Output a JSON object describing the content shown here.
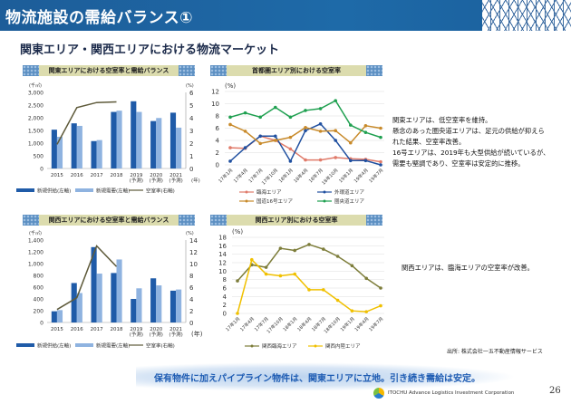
{
  "header": {
    "title": "物流施設の需給バランス①"
  },
  "subtitle": "関東エリア・関西エリアにおける物流マーケット",
  "notes": {
    "kanto": [
      "関東エリアは、低空室率を維持。",
      "懸念のあった圏央道エリアは、足元の供給が抑えら",
      "れた結果、空室率改善。",
      "16号エリアは、2019年も大型供給が続いているが、",
      "需要も堅調であり、空室率は安定的に推移。"
    ],
    "kansai": "関西エリアは、臨海エリアの空室率が改善。"
  },
  "source": "出所: 株式会社一五不動産情報サービス",
  "banner": "保有物件に加えパイプライン物件は、関東エリアに立地。引き続き需給は安定。",
  "footer": {
    "corporation": "ITOCHU Advance Logistics Investment Corporation",
    "page": "26"
  },
  "chart_data": [
    {
      "type": "bar+line",
      "title": "関東エリアにおける空室率と需給バランス",
      "categories": [
        "2015",
        "2016",
        "2017",
        "2018",
        "2019",
        "2020",
        "2021"
      ],
      "category_sub": [
        "",
        "",
        "",
        "",
        "(予測)",
        "(予測)",
        "(予測)"
      ],
      "x_unit": "(年)",
      "y_left_unit": "(千㎡)",
      "y_right_unit": "(%)",
      "ylim_left": [
        0,
        3000
      ],
      "ylim_left_step": 500,
      "ylim_right": [
        0,
        6
      ],
      "ylim_right_step": 1,
      "series": [
        {
          "name": "新規供給(左軸)",
          "kind": "bar",
          "axis": "left",
          "color": "#1f5ba8",
          "values": [
            1530,
            1780,
            1080,
            2230,
            2650,
            1870,
            2200
          ]
        },
        {
          "name": "新規需要(左軸)",
          "kind": "bar",
          "axis": "left",
          "color": "#8fb3e0",
          "values": [
            1250,
            1680,
            1120,
            2280,
            2230,
            1990,
            1610
          ]
        },
        {
          "name": "空室率(右軸)",
          "kind": "line",
          "axis": "right",
          "color": "#5e5a3a",
          "values": [
            1.9,
            4.8,
            5.2,
            5.25,
            null,
            null,
            null
          ]
        }
      ]
    },
    {
      "type": "line",
      "title": "首都圏エリア別における空室率",
      "y_unit": "(%)",
      "ylim": [
        0,
        12
      ],
      "ystep": 2,
      "categories": [
        "17年1月",
        "17年4月",
        "17年7月",
        "17年10月",
        "18年1月",
        "18年4月",
        "18年7月",
        "18年10月",
        "19年1月",
        "19年4月",
        "19年7月"
      ],
      "series": [
        {
          "name": "臨海エリア",
          "color": "#e07b6a",
          "values": [
            2.8,
            2.7,
            4.7,
            4.0,
            2.6,
            0.8,
            0.8,
            1.2,
            1.0,
            0.9,
            0.5
          ]
        },
        {
          "name": "外環道エリア",
          "color": "#2050a0",
          "values": [
            0.6,
            2.8,
            4.7,
            4.7,
            0.6,
            5.6,
            6.7,
            4.0,
            0.7,
            0.7,
            0
          ]
        },
        {
          "name": "国道16号エリア",
          "color": "#c88a2a",
          "values": [
            6.6,
            5.5,
            3.5,
            4.0,
            4.5,
            6.1,
            5.5,
            5.6,
            3.6,
            6.4,
            6.0
          ]
        },
        {
          "name": "圏央道エリア",
          "color": "#1fa050",
          "values": [
            7.8,
            8.5,
            7.8,
            9.4,
            7.8,
            8.9,
            9.2,
            10.5,
            6.5,
            5.3,
            4.5
          ]
        }
      ]
    },
    {
      "type": "bar+line",
      "title": "関西エリアにおける空室率と需給バランス",
      "categories": [
        "2015",
        "2016",
        "2017",
        "2018",
        "2019",
        "2020",
        "2021"
      ],
      "category_sub": [
        "",
        "",
        "",
        "",
        "(予測)",
        "(予測)",
        "(予測)"
      ],
      "x_unit": "(年)",
      "y_left_unit": "(千㎡)",
      "y_right_unit": "(%)",
      "ylim_left": [
        0,
        1400
      ],
      "ylim_left_step": 200,
      "ylim_right": [
        0,
        14
      ],
      "ylim_right_step": 2,
      "series": [
        {
          "name": "新規供給(左軸)",
          "kind": "bar",
          "axis": "left",
          "color": "#1f5ba8",
          "values": [
            190,
            670,
            1280,
            840,
            400,
            750,
            540
          ]
        },
        {
          "name": "新規需要(左軸)",
          "kind": "bar",
          "axis": "left",
          "color": "#8fb3e0",
          "values": [
            210,
            500,
            830,
            1070,
            580,
            630,
            560
          ]
        },
        {
          "name": "空室率(右軸)",
          "kind": "line",
          "axis": "right",
          "color": "#5e5a3a",
          "values": [
            2.2,
            4.2,
            13,
            9.5,
            null,
            null,
            null
          ]
        }
      ]
    },
    {
      "type": "line",
      "title": "関西エリア別における空室率",
      "y_unit": "(%)",
      "ylim": [
        0,
        18
      ],
      "ystep": 2,
      "categories": [
        "17年1月",
        "17年4月",
        "17年7月",
        "17年10月",
        "18年1月",
        "18年4月",
        "18年7月",
        "18年10月",
        "19年1月",
        "19年4月",
        "19年7月"
      ],
      "series": [
        {
          "name": "関西臨海エリア",
          "color": "#7d7d3a",
          "values": [
            7.7,
            11.5,
            10.9,
            15.4,
            14.9,
            16.3,
            15.2,
            13.5,
            11.3,
            8.3,
            6.0
          ]
        },
        {
          "name": "関西内陸エリア",
          "color": "#f0c000",
          "values": [
            0,
            12.7,
            9.3,
            8.9,
            9.3,
            5.6,
            5.6,
            3.1,
            0.6,
            0.4,
            1.8
          ]
        }
      ]
    }
  ]
}
